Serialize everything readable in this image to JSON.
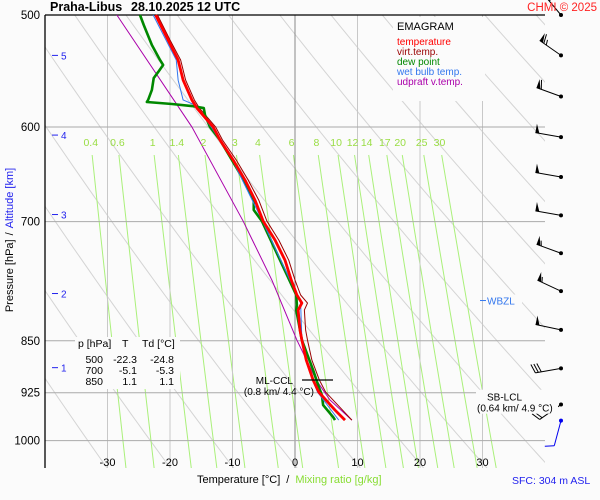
{
  "header": {
    "station": "Praha-Libus",
    "datetime": "28.10.2025 12 UTC",
    "copyright": "CHMI © 2025"
  },
  "legend": {
    "title": "EMAGRAM",
    "items": [
      {
        "label": "temperature",
        "color": "#ff0000"
      },
      {
        "label": "virt.temp.",
        "color": "#990000"
      },
      {
        "label": "dew point",
        "color": "#008800"
      },
      {
        "label": "wet bulb temp.",
        "color": "#3377ee"
      },
      {
        "label": "udpraft v.temp.",
        "color": "#aa00aa"
      }
    ]
  },
  "table": {
    "headers": [
      "p [hPa]",
      "T",
      "Td [°C]"
    ],
    "rows": [
      [
        "500",
        "-22.3",
        "-24.8"
      ],
      [
        "700",
        "-5.1",
        "-5.3"
      ],
      [
        "850",
        "1.1",
        "1.1"
      ]
    ]
  },
  "annotations": {
    "ml_ccl": {
      "label": "ML-CCL",
      "detail": "(0.8 km/ 4.4 °C)"
    },
    "sb_lcl": {
      "label": "SB-LCL",
      "detail": "(0.64 km/ 4.9 °C)"
    },
    "wbzl": {
      "label": "WBZL"
    },
    "surface": "SFC: 304 m ASL"
  },
  "axes": {
    "y_label_pressure": "Pressure [hPa]",
    "y_label_sep": "/",
    "y_label_altitude": "Altitude [km]",
    "x_label_temperature": "Temperature [°C]",
    "x_label_sep": "/",
    "x_label_mixing": "Mixing ratio [g/kg]"
  },
  "chart_data": {
    "type": "line",
    "diagram": "emagram",
    "y_scale": "log",
    "ylim_hpa": [
      1046,
      500
    ],
    "xlim_c": [
      -40,
      40
    ],
    "pressure_ticks": [
      500,
      600,
      700,
      850,
      925,
      1000
    ],
    "temperature_ticks": [
      -30,
      -20,
      -10,
      0,
      10,
      20,
      30
    ],
    "altitude_ticks_km": [
      {
        "km": "5",
        "p": 534
      },
      {
        "km": "4",
        "p": 608
      },
      {
        "km": "3",
        "p": 692
      },
      {
        "km": "2",
        "p": 787
      },
      {
        "km": "1",
        "p": 888
      }
    ],
    "mixing_ratio_lines_gkg": [
      "0.4",
      "0.6",
      "1",
      "1.4",
      "2",
      "3",
      "4",
      "6",
      "8",
      "10",
      "12",
      "14",
      "17",
      "20",
      "25",
      "30"
    ],
    "series": [
      {
        "name": "temperature",
        "color": "#ff0000",
        "points": [
          [
            500,
            -22.3
          ],
          [
            520.8,
            -20.3
          ],
          [
            538,
            -18.7
          ],
          [
            555.9,
            -17.9
          ],
          [
            574.2,
            -16.5
          ],
          [
            581.8,
            -15.7
          ],
          [
            600,
            -13.1
          ],
          [
            612.9,
            -12
          ],
          [
            633.2,
            -9.9
          ],
          [
            654.2,
            -8
          ],
          [
            675.9,
            -6.4
          ],
          [
            699.4,
            -5.1
          ],
          [
            721.3,
            -3.2
          ],
          [
            745.4,
            -1.6
          ],
          [
            769.9,
            -0.6
          ],
          [
            788.9,
            0.3
          ],
          [
            799.3,
            1.1
          ],
          [
            808.5,
            0.5
          ],
          [
            835.3,
            0.8
          ],
          [
            849,
            1.1
          ],
          [
            877.1,
            1.8
          ],
          [
            906.1,
            2.9
          ],
          [
            924,
            3.8
          ],
          [
            951.5,
            6.4
          ],
          [
            967.2,
            8.0
          ]
        ]
      },
      {
        "name": "virt.temp.",
        "color": "#990000",
        "points": [
          [
            500,
            -22.0
          ],
          [
            520.8,
            -20.0
          ],
          [
            538,
            -18.3
          ],
          [
            555.9,
            -17.5
          ],
          [
            574.2,
            -16.1
          ],
          [
            581.8,
            -15.3
          ],
          [
            600,
            -12.7
          ],
          [
            612.9,
            -11.6
          ],
          [
            633.2,
            -9.4
          ],
          [
            654.2,
            -7.5
          ],
          [
            675.9,
            -5.8
          ],
          [
            699.4,
            -4.5
          ],
          [
            721.3,
            -2.6
          ],
          [
            745.4,
            -1.0
          ],
          [
            769.9,
            0.0
          ],
          [
            788.9,
            0.9
          ],
          [
            799.3,
            2.0
          ],
          [
            808.5,
            1.5
          ],
          [
            835.3,
            1.7
          ],
          [
            849,
            2.0
          ],
          [
            877.1,
            2.7
          ],
          [
            906.1,
            3.9
          ],
          [
            924,
            4.9
          ],
          [
            951.5,
            7.6
          ],
          [
            967.2,
            9.1
          ]
        ]
      },
      {
        "name": "dew point",
        "color": "#008800",
        "points": [
          [
            500,
            -24.8
          ],
          [
            508.2,
            -24.2
          ],
          [
            525,
            -22.9
          ],
          [
            538,
            -21.6
          ],
          [
            542.4,
            -21.1
          ],
          [
            548.7,
            -21.9
          ],
          [
            554,
            -22.6
          ],
          [
            564.9,
            -22.9
          ],
          [
            574.2,
            -23.5
          ],
          [
            576.1,
            -23.7
          ],
          [
            578,
            -19.7
          ],
          [
            579.9,
            -16.5
          ],
          [
            581.8,
            -14.6
          ],
          [
            588.4,
            -14.4
          ],
          [
            600,
            -13.6
          ],
          [
            612.9,
            -12
          ],
          [
            633.2,
            -10.1
          ],
          [
            654.2,
            -8.2
          ],
          [
            675.9,
            -6.6
          ],
          [
            686.9,
            -6.6
          ],
          [
            699.4,
            -5.3
          ],
          [
            788.9,
            0.2
          ],
          [
            801.9,
            0.3
          ],
          [
            808.5,
            0.2
          ],
          [
            849,
            1.1
          ],
          [
            891.5,
            2.9
          ],
          [
            913.5,
            3.7
          ],
          [
            928.5,
            4.3
          ],
          [
            943.8,
            4.5
          ],
          [
            962.4,
            6.1
          ],
          [
            967.2,
            6.4
          ]
        ]
      },
      {
        "name": "wet bulb temp.",
        "color": "#3377ee",
        "points": [
          [
            500,
            -22.7
          ],
          [
            538,
            -19
          ],
          [
            555.9,
            -18.7
          ],
          [
            574.2,
            -17.9
          ],
          [
            579,
            -16
          ],
          [
            600,
            -13.4
          ],
          [
            633.2,
            -10
          ],
          [
            699.4,
            -5.2
          ],
          [
            769.9,
            -0.8
          ],
          [
            799.3,
            0.9
          ],
          [
            849,
            1.1
          ],
          [
            906.1,
            2.8
          ],
          [
            924,
            3.6
          ],
          [
            967.2,
            7.0
          ]
        ]
      },
      {
        "name": "udpraft v.temp.",
        "color": "#aa00aa",
        "points": [
          [
            500,
            -28.5
          ],
          [
            600,
            -16.5
          ],
          [
            699.4,
            -8.3
          ],
          [
            769.9,
            -3.7
          ],
          [
            849,
            0.3
          ],
          [
            906.1,
            3.4
          ],
          [
            936.1,
            5.6
          ],
          [
            967.2,
            9.1
          ]
        ]
      }
    ],
    "wind_barbs": [
      {
        "p": 500,
        "dir": 320,
        "kt": 65
      },
      {
        "p": 534,
        "dir": 305,
        "kt": 65
      },
      {
        "p": 571,
        "dir": 290,
        "kt": 60
      },
      {
        "p": 610,
        "dir": 280,
        "kt": 50
      },
      {
        "p": 651,
        "dir": 280,
        "kt": 50
      },
      {
        "p": 693,
        "dir": 280,
        "kt": 50
      },
      {
        "p": 737,
        "dir": 290,
        "kt": 55
      },
      {
        "p": 784,
        "dir": 295,
        "kt": 55
      },
      {
        "p": 835,
        "dir": 282,
        "kt": 50
      },
      {
        "p": 889,
        "dir": 260,
        "kt": 30
      },
      {
        "p": 943,
        "dir": 235,
        "kt": 20
      },
      {
        "p": 968,
        "dir": 195,
        "kt": 10,
        "surface": true
      }
    ],
    "levels": {
      "ml_ccl_p": 906,
      "sb_lcl_p": 913,
      "wbzl_p": 787
    }
  }
}
